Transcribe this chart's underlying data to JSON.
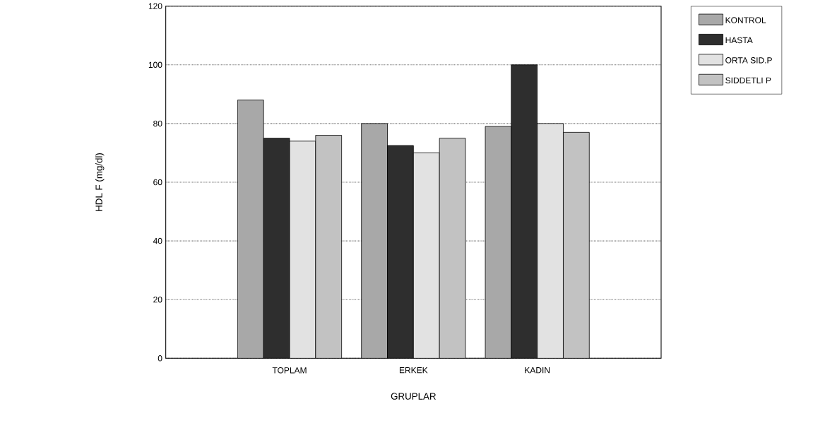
{
  "chart_data": {
    "type": "bar",
    "xlabel": "GRUPLAR",
    "ylabel": "HDL F (mg/dl)",
    "categories": [
      "TOPLAM",
      "ERKEK",
      "KADIN"
    ],
    "series": [
      {
        "name": "KONTROL",
        "color": "#a8a8a8",
        "values": [
          88,
          80,
          79
        ]
      },
      {
        "name": "HASTA",
        "color": "#2e2e2e",
        "values": [
          75,
          72.5,
          100
        ]
      },
      {
        "name": "ORTA SID.P",
        "color": "#e2e2e2",
        "values": [
          74,
          70,
          80
        ]
      },
      {
        "name": "SIDDETLI P",
        "color": "#c2c2c2",
        "values": [
          76,
          75,
          77
        ]
      }
    ],
    "ylim": [
      0,
      120
    ],
    "yticks": [
      0,
      20,
      40,
      60,
      80,
      100,
      120
    ],
    "grid": "y",
    "legend": "right"
  }
}
